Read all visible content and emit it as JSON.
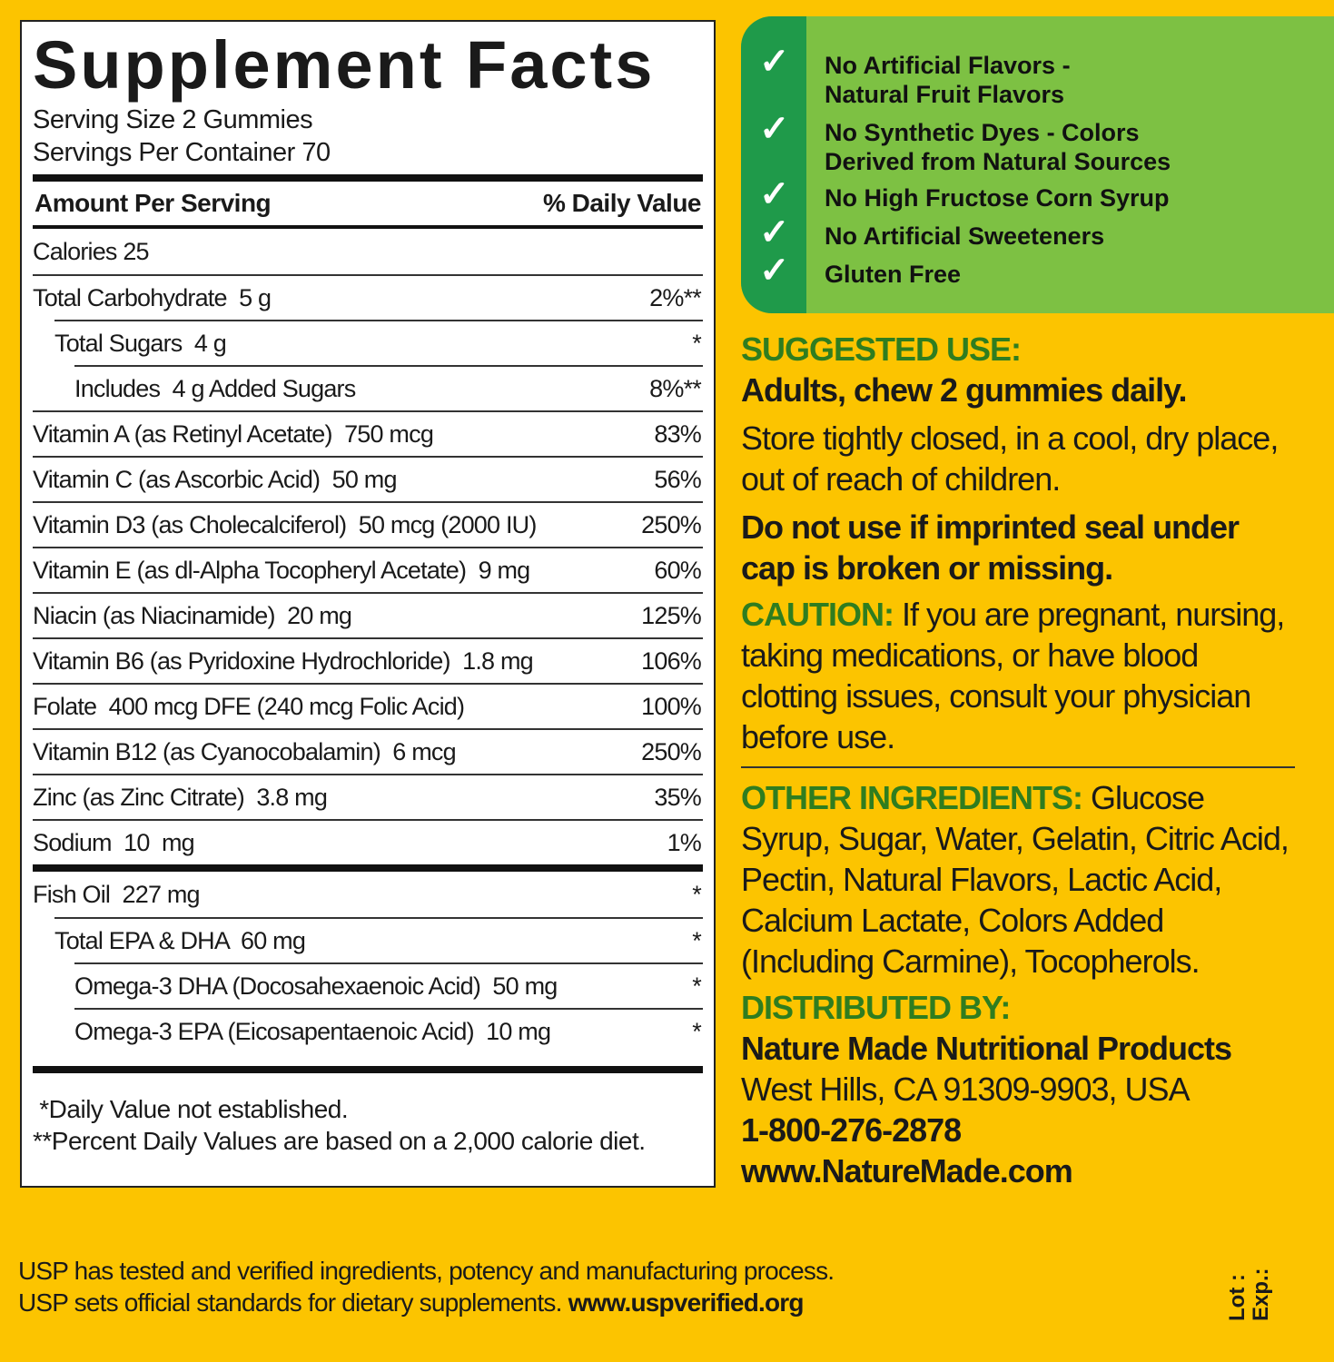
{
  "facts": {
    "title": "Supplement Facts",
    "serving_size": "Serving Size 2 Gummies",
    "servings_per_container": "Servings Per Container 70",
    "amount_header": "Amount Per Serving",
    "dv_header": "% Daily Value",
    "rows": [
      {
        "name": "Calories 25",
        "dv": ""
      },
      {
        "name": "Total Carbohydrate  5 g",
        "dv": "2%**"
      },
      {
        "name": "Total Sugars  4 g",
        "dv": "*"
      },
      {
        "name": "Includes  4 g Added Sugars",
        "dv": "8%**"
      },
      {
        "name": "Vitamin A (as Retinyl Acetate)  750 mcg",
        "dv": "83%"
      },
      {
        "name": "Vitamin C (as Ascorbic Acid)  50 mg",
        "dv": "56%"
      },
      {
        "name": "Vitamin D3 (as Cholecalciferol)  50 mcg (2000 IU)",
        "dv": "250%"
      },
      {
        "name": "Vitamin E (as dl-Alpha Tocopheryl Acetate)  9 mg",
        "dv": "60%"
      },
      {
        "name": "Niacin (as Niacinamide)  20 mg",
        "dv": "125%"
      },
      {
        "name": "Vitamin B6 (as Pyridoxine Hydrochloride)  1.8 mg",
        "dv": "106%"
      },
      {
        "name": "Folate  400 mcg DFE (240 mcg Folic Acid)",
        "dv": "100%"
      },
      {
        "name": "Vitamin B12 (as Cyanocobalamin)  6 mcg",
        "dv": "250%"
      },
      {
        "name": "Zinc (as Zinc Citrate)  3.8 mg",
        "dv": "35%"
      },
      {
        "name": "Sodium  10  mg",
        "dv": "1%"
      }
    ],
    "rows2": [
      {
        "name": "Fish Oil  227 mg",
        "dv": "*"
      },
      {
        "name": "Total EPA & DHA  60 mg",
        "dv": "*"
      },
      {
        "name": "Omega-3 DHA (Docosahexaenoic Acid)  50 mg",
        "dv": "*"
      },
      {
        "name": "Omega-3 EPA (Eicosapentaenoic Acid)  10 mg",
        "dv": "*"
      }
    ],
    "footnote1": " *Daily Value not established.",
    "footnote2": "**Percent Daily Values are based on a 2,000 calorie diet."
  },
  "claims": [
    {
      "line1": "No Artificial Flavors -",
      "line2": "Natural Fruit Flavors",
      "icon": "check-icon"
    },
    {
      "line1": "No Synthetic Dyes - Colors",
      "line2": "Derived from Natural Sources",
      "icon": "check-icon"
    },
    {
      "line1": "No High Fructose Corn Syrup",
      "icon": "check-icon"
    },
    {
      "line1": "No Artificial Sweeteners",
      "icon": "check-icon"
    },
    {
      "line1": "Gluten Free",
      "icon": "check-icon"
    }
  ],
  "suggested_use": {
    "heading": "SUGGESTED USE:",
    "dose": "Adults, chew 2 gummies daily.",
    "storage": "Store tightly closed, in a cool, dry place, out of reach of children.",
    "warning": "Do not use if imprinted seal under cap is broken or missing."
  },
  "caution": {
    "heading": "CAUTION:",
    "text": " If you are pregnant, nursing, taking medications, or have blood clotting issues, consult your physician before use."
  },
  "ingredients": {
    "heading": "OTHER INGREDIENTS:",
    "text": " Glucose Syrup, Sugar, Water, Gelatin, Citric Acid, Pectin, Natural Flavors, Lactic Acid, Calcium Lactate, Colors Added (Including Carmine), Tocopherols."
  },
  "distributor": {
    "heading": "DISTRIBUTED BY:",
    "company": "Nature Made Nutritional Products",
    "address": "West Hills, CA 91309-9903, USA",
    "phone": "1-800-276-2878",
    "website": "www.NatureMade.com"
  },
  "usp": {
    "line1": "USP has tested and verified ingredients, potency and manufacturing process.",
    "line2": "USP sets official standards for dietary supplements. ",
    "url": "www.uspverified.org"
  },
  "lot": {
    "lot": "Lot :",
    "exp": "Exp.:"
  },
  "colors": {
    "background": "#fcc400",
    "claims_green": "#7dc143",
    "stripe_green": "#1f9a4a",
    "heading_green": "#2f7d1f"
  }
}
